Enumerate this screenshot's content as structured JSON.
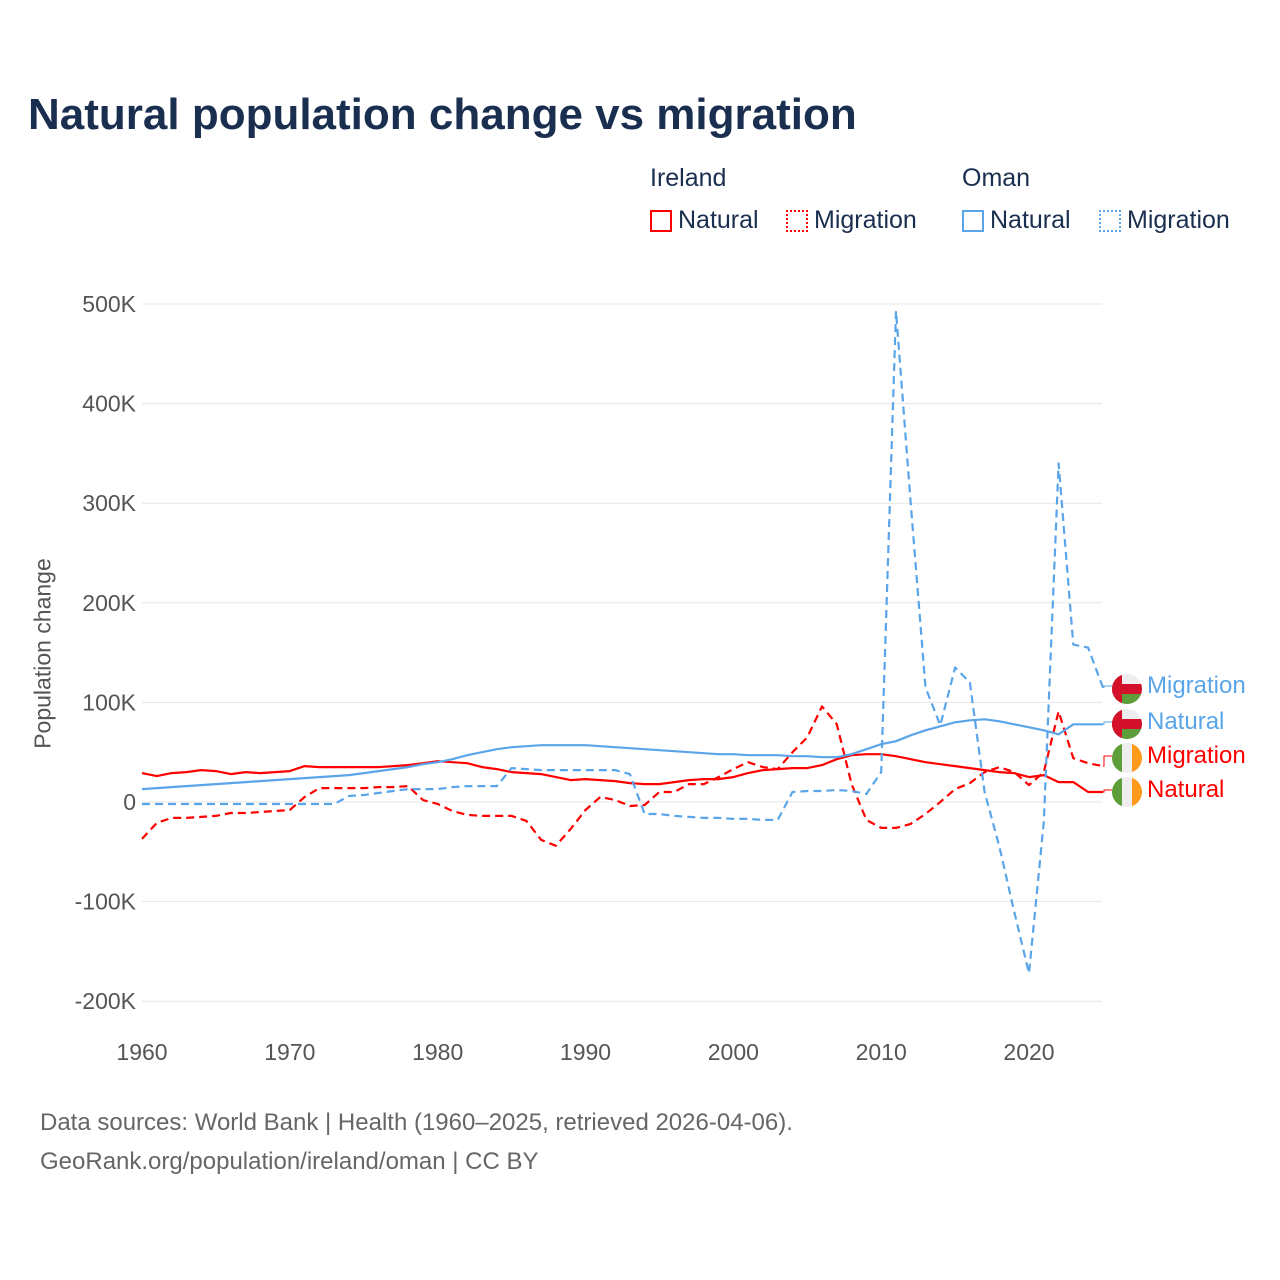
{
  "title": "Natural population change vs migration",
  "legend": {
    "groups": [
      {
        "name": "Ireland",
        "items": [
          "Natural",
          "Migration"
        ]
      },
      {
        "name": "Oman",
        "items": [
          "Natural",
          "Migration"
        ]
      }
    ]
  },
  "footer": {
    "line1": "Data sources: World Bank | Health (1960–2025, retrieved 2026-04-06).",
    "line2": "GeoRank.org/population/ireland/oman | CC BY"
  },
  "colors": {
    "ireland": "#ff0000",
    "oman": "#5aa5ea"
  },
  "end_labels": [
    {
      "country": "Oman",
      "label": "Migration",
      "flag": "oman-flag-icon"
    },
    {
      "country": "Oman",
      "label": "Natural",
      "flag": "oman-flag-icon"
    },
    {
      "country": "Ireland",
      "label": "Migration",
      "flag": "ireland-flag-icon"
    },
    {
      "country": "Ireland",
      "label": "Natural",
      "flag": "ireland-flag-icon"
    }
  ],
  "chart_data": {
    "type": "line",
    "title": "Natural population change vs migration",
    "xlabel": "",
    "ylabel": "Population change",
    "xlim": [
      1960,
      2025
    ],
    "ylim": [
      -200000,
      500000
    ],
    "x_ticks": [
      "1960",
      "1970",
      "1980",
      "1990",
      "2000",
      "2010",
      "2020"
    ],
    "y_ticks": [
      "500K",
      "400K",
      "300K",
      "200K",
      "100K",
      "0",
      "-100K",
      "-200K"
    ],
    "y_tick_values": [
      500,
      400,
      300,
      200,
      100,
      0,
      -100,
      -200
    ],
    "x_tick_values": [
      1960,
      1970,
      1980,
      1990,
      2000,
      2010,
      2020
    ],
    "units": "thousands",
    "start_year": 1960,
    "series": [
      {
        "name": "Ireland Natural",
        "country": "Ireland",
        "dash": false,
        "values": [
          29,
          26,
          29,
          30,
          32,
          31,
          28,
          30,
          29,
          30,
          31,
          36,
          35,
          35,
          35,
          35,
          35,
          36,
          37,
          39,
          41,
          40,
          39,
          35,
          33,
          30,
          29,
          28,
          25,
          22,
          23,
          22,
          21,
          19,
          18,
          18,
          20,
          22,
          23,
          23,
          25,
          29,
          32,
          33,
          34,
          34,
          37,
          43,
          47,
          48,
          48,
          46,
          43,
          40,
          38,
          36,
          34,
          32,
          30,
          29,
          25,
          27,
          20,
          20,
          10,
          10
        ]
      },
      {
        "name": "Ireland Migration",
        "country": "Ireland",
        "dash": true,
        "values": [
          -37,
          -21,
          -16,
          -16,
          -15,
          -14,
          -11,
          -11,
          -10,
          -9,
          -8,
          5,
          14,
          14,
          14,
          14,
          15,
          15,
          16,
          2,
          -2,
          -9,
          -13,
          -14,
          -14,
          -14,
          -19,
          -38,
          -44,
          -27,
          -8,
          5,
          2,
          -4,
          -3,
          10,
          10,
          18,
          18,
          25,
          33,
          40,
          35,
          33,
          50,
          65,
          96,
          78,
          18,
          -18,
          -26,
          -26,
          -22,
          -12,
          0,
          13,
          19,
          30,
          35,
          30,
          17,
          30,
          91,
          44,
          39,
          36
        ]
      },
      {
        "name": "Oman Natural",
        "country": "Oman",
        "dash": false,
        "values": [
          13,
          14,
          15,
          16,
          17,
          18,
          19,
          20,
          21,
          22,
          23,
          24,
          25,
          26,
          27,
          29,
          31,
          33,
          35,
          38,
          40,
          43,
          47,
          50,
          53,
          55,
          56,
          57,
          57,
          57,
          57,
          56,
          55,
          54,
          53,
          52,
          51,
          50,
          49,
          48,
          48,
          47,
          47,
          47,
          46,
          46,
          45,
          45,
          48,
          53,
          58,
          61,
          67,
          72,
          76,
          80,
          82,
          83,
          81,
          78,
          75,
          72,
          68,
          78,
          78,
          78
        ]
      },
      {
        "name": "Oman Migration",
        "country": "Oman",
        "dash": true,
        "values": [
          -2,
          -2,
          -2,
          -2,
          -2,
          -2,
          -2,
          -2,
          -2,
          -2,
          -2,
          -2,
          -2,
          -2,
          6,
          7,
          9,
          11,
          13,
          13,
          13,
          15,
          16,
          16,
          16,
          34,
          33,
          32,
          32,
          32,
          32,
          32,
          32,
          28,
          -12,
          -12,
          -14,
          -15,
          -16,
          -16,
          -17,
          -17,
          -18,
          -18,
          10,
          11,
          11,
          12,
          11,
          8,
          30,
          493,
          300,
          115,
          77,
          135,
          120,
          10,
          -45,
          -110,
          -172,
          -20,
          340,
          158,
          155,
          115
        ]
      }
    ]
  }
}
